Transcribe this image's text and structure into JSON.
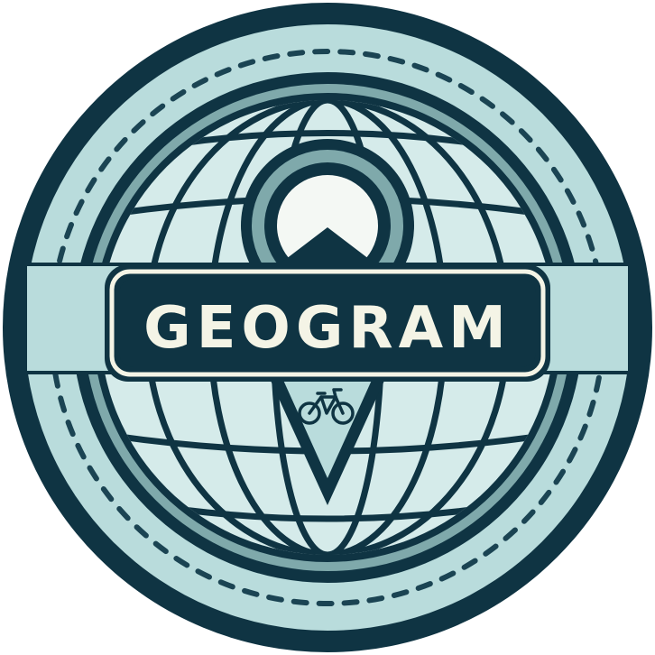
{
  "logo": {
    "brand_name": "GEOGRAM",
    "icon": "bicycle-icon",
    "colors": {
      "dark_navy": "#0f3443",
      "light_teal": "#b9dcdc",
      "mid_teal": "#7fa9ab",
      "pale_globe": "#d5ebea",
      "cream_text": "#f4f4e6",
      "dash": "#1b4453"
    }
  }
}
